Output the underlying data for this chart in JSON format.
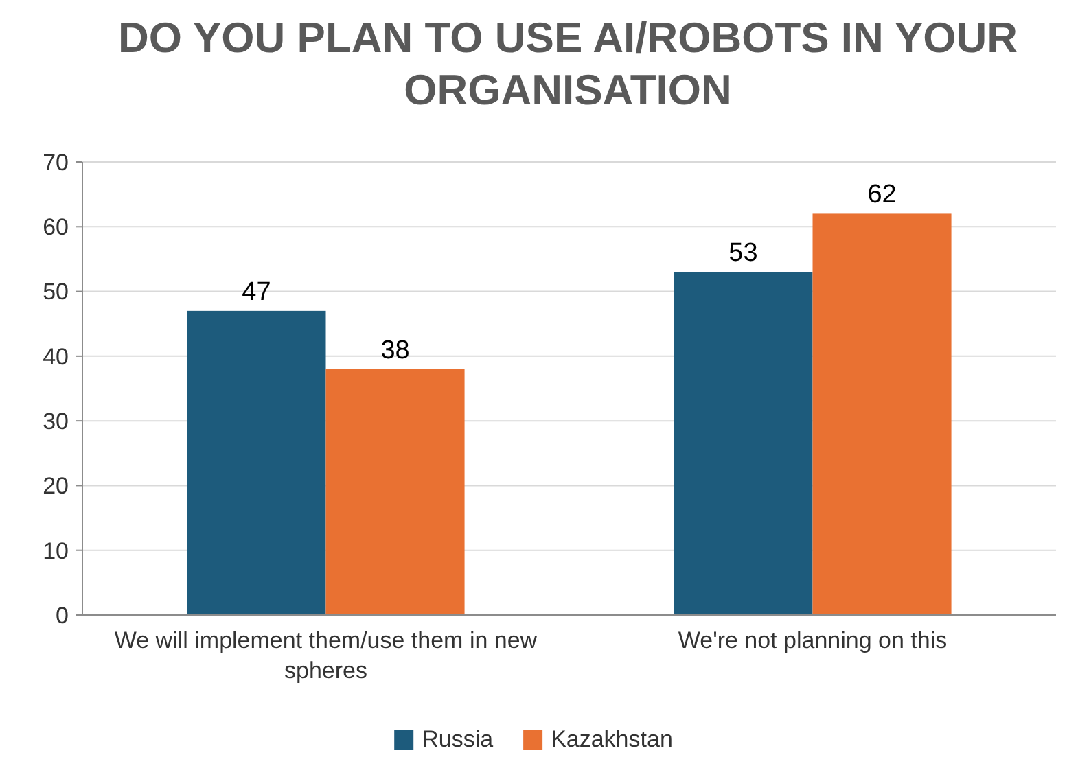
{
  "chart_data": {
    "type": "bar",
    "title": "DO YOU PLAN TO USE AI/ROBOTS IN YOUR ORGANISATION",
    "categories": [
      "We will implement them/use them in new spheres",
      "We're not planning on this"
    ],
    "series": [
      {
        "name": "Russia",
        "color": "#1d5b7c",
        "values": [
          47,
          53
        ]
      },
      {
        "name": "Kazakhstan",
        "color": "#e97132",
        "values": [
          38,
          62
        ]
      }
    ],
    "ylim": [
      0,
      70
    ],
    "yticks": [
      0,
      10,
      20,
      30,
      40,
      50,
      60,
      70
    ],
    "grid": "y",
    "legend": "bottom",
    "data_labels": true
  }
}
